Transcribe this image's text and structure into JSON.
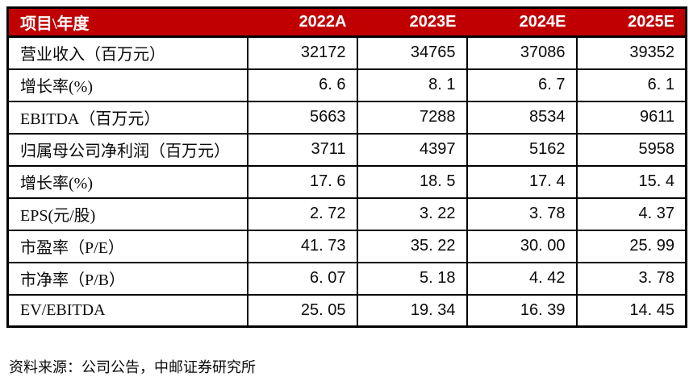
{
  "table": {
    "header": {
      "label_col": "项目\\年度",
      "years": [
        "2022A",
        "2023E",
        "2024E",
        "2025E"
      ]
    },
    "rows": [
      {
        "label": "营业收入（百万元）",
        "values": [
          "32172",
          "34765",
          "37086",
          "39352"
        ]
      },
      {
        "label": "增长率(%)",
        "values": [
          "6. 6",
          "8. 1",
          "6. 7",
          "6. 1"
        ]
      },
      {
        "label": "EBITDA（百万元）",
        "values": [
          "5663",
          "7288",
          "8534",
          "9611"
        ]
      },
      {
        "label": "归属母公司净利润（百万元）",
        "values": [
          "3711",
          "4397",
          "5162",
          "5958"
        ]
      },
      {
        "label": "增长率(%)",
        "values": [
          "17. 6",
          "18. 5",
          "17. 4",
          "15. 4"
        ]
      },
      {
        "label": "EPS(元/股)",
        "values": [
          "2. 72",
          "3. 22",
          "3. 78",
          "4. 37"
        ]
      },
      {
        "label": "市盈率（P/E）",
        "values": [
          "41. 73",
          "35. 22",
          "30. 00",
          "25. 99"
        ]
      },
      {
        "label": "市净率（P/B）",
        "values": [
          "6. 07",
          "5. 18",
          "4. 42",
          "3. 78"
        ]
      },
      {
        "label": "EV/EBITDA",
        "values": [
          "25. 05",
          "19. 34",
          "16. 39",
          "14. 45"
        ]
      }
    ]
  },
  "source_note": "资料来源：公司公告，中邮证券研究所",
  "colors": {
    "header_bg": "#c00000",
    "header_text": "#ffffff",
    "border": "#000000",
    "body_text": "#0a0a0a",
    "background": "#ffffff"
  },
  "chart_data": {
    "type": "table",
    "categories": [
      "2022A",
      "2023E",
      "2024E",
      "2025E"
    ],
    "series": [
      {
        "name": "营业收入（百万元）",
        "values": [
          32172,
          34765,
          37086,
          39352
        ]
      },
      {
        "name": "增长率(%)",
        "values": [
          6.6,
          8.1,
          6.7,
          6.1
        ]
      },
      {
        "name": "EBITDA（百万元）",
        "values": [
          5663,
          7288,
          8534,
          9611
        ]
      },
      {
        "name": "归属母公司净利润（百万元）",
        "values": [
          3711,
          4397,
          5162,
          5958
        ]
      },
      {
        "name": "增长率(%)",
        "values": [
          17.6,
          18.5,
          17.4,
          15.4
        ]
      },
      {
        "name": "EPS(元/股)",
        "values": [
          2.72,
          3.22,
          3.78,
          4.37
        ]
      },
      {
        "name": "市盈率（P/E）",
        "values": [
          41.73,
          35.22,
          30.0,
          25.99
        ]
      },
      {
        "name": "市净率（P/B）",
        "values": [
          6.07,
          5.18,
          4.42,
          3.78
        ]
      },
      {
        "name": "EV/EBITDA",
        "values": [
          25.05,
          19.34,
          16.39,
          14.45
        ]
      }
    ],
    "source": "资料来源：公司公告，中邮证券研究所",
    "legend_position": "none",
    "grid": true
  }
}
